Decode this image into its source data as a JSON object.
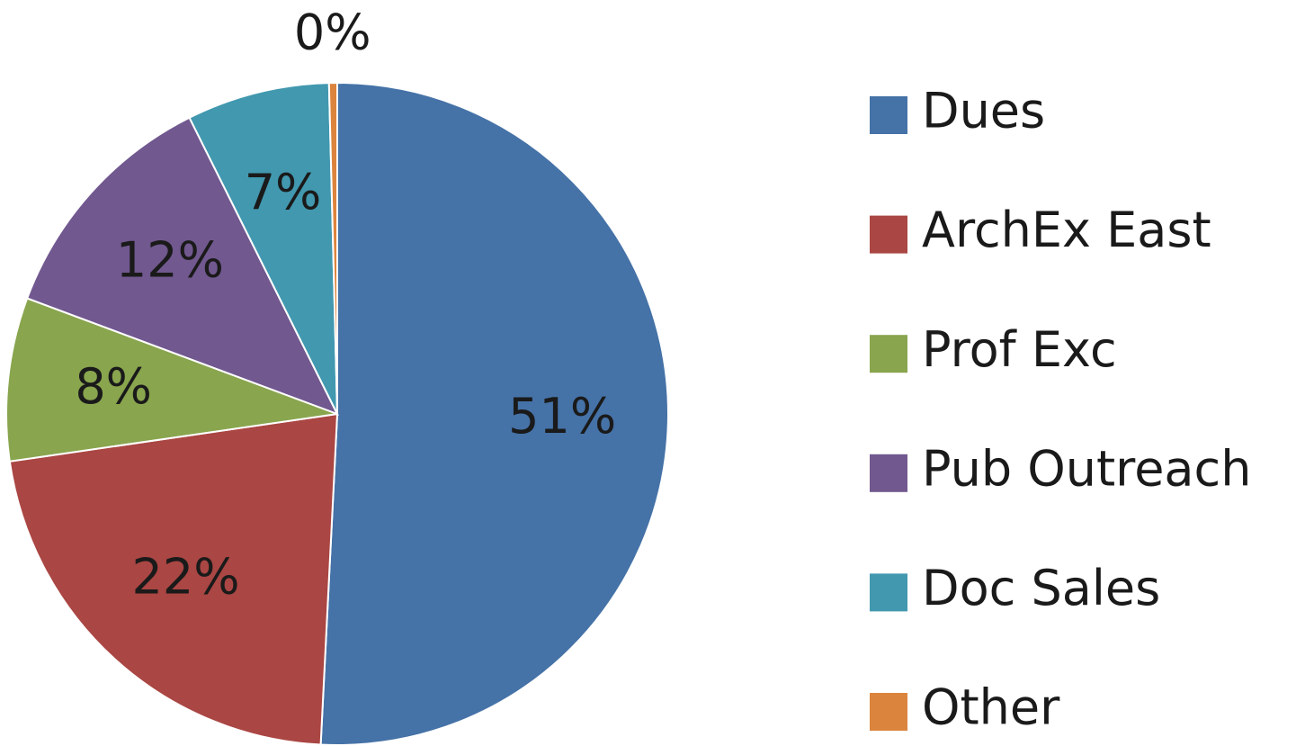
{
  "chart_data": {
    "type": "pie",
    "categories": [
      "Dues",
      "ArchEx East",
      "Prof Exc",
      "Pub Outreach",
      "Doc Sales",
      "Other"
    ],
    "values": [
      51,
      22,
      8,
      12,
      7,
      0.4
    ],
    "value_labels": [
      "51%",
      "22%",
      "8%",
      "12%",
      "7%",
      "0%"
    ],
    "colors": [
      "#4572a7",
      "#aa4643",
      "#89a54e",
      "#71588f",
      "#4198af",
      "#db843d"
    ],
    "legend": "right"
  }
}
